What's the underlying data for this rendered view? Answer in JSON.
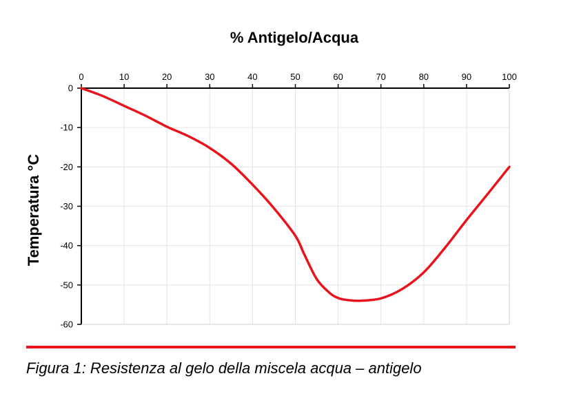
{
  "chart_data": {
    "type": "line",
    "title": "% Antigelo/Acqua",
    "xlabel": "% Antigelo/Acqua",
    "ylabel": "Temperatura °C",
    "x_axis_position": "top",
    "xlim": [
      0,
      100
    ],
    "ylim": [
      -60,
      0
    ],
    "x_ticks": [
      0,
      10,
      20,
      30,
      40,
      50,
      60,
      70,
      80,
      90,
      100
    ],
    "y_ticks": [
      0,
      -10,
      -20,
      -30,
      -40,
      -50,
      -60
    ],
    "grid": true,
    "series": [
      {
        "color": "#e8141b",
        "x": [
          0,
          5,
          10,
          15,
          20,
          25,
          30,
          35,
          40,
          45,
          50,
          52,
          55,
          58,
          60,
          62,
          65,
          70,
          75,
          80,
          85,
          90,
          95,
          100
        ],
        "y": [
          0,
          -2,
          -4.5,
          -7,
          -9.8,
          -12.2,
          -15.2,
          -19.2,
          -24.5,
          -30.5,
          -37.5,
          -42,
          -48.5,
          -52,
          -53.3,
          -53.8,
          -54,
          -53.4,
          -51,
          -46.8,
          -40.5,
          -33.5,
          -26.8,
          -20
        ]
      }
    ]
  },
  "caption": {
    "text": "Figura 1:  Resistenza al gelo della miscela acqua – antigelo",
    "rule_color": "#e8141b"
  }
}
